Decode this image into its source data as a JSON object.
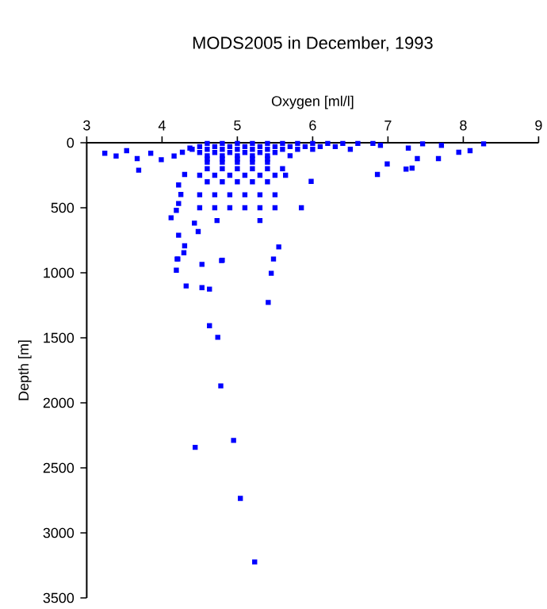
{
  "chart_data": {
    "type": "scatter",
    "title": "MODS2005 in December, 1993",
    "xlabel": "Oxygen [ml/l]",
    "ylabel": "Depth [m]",
    "xlim": [
      3,
      9
    ],
    "ylim": [
      3500,
      0
    ],
    "xticks": [
      3,
      4,
      5,
      6,
      7,
      8,
      9
    ],
    "yticks": [
      0,
      500,
      1000,
      1500,
      2000,
      2500,
      3000,
      3500
    ],
    "marker": "square",
    "series": [
      {
        "color": "#0000ff",
        "x": [
          3.24,
          3.39,
          3.53,
          3.67,
          3.69,
          3.85,
          3.99,
          4.16,
          4.27,
          4.37,
          4.3,
          4.22,
          4.25,
          4.22,
          4.19,
          4.12,
          4.43,
          4.73,
          4.22,
          4.48,
          4.3,
          4.29,
          4.2,
          4.53,
          4.8,
          5.3,
          5.55,
          5.48,
          5.85,
          5.98,
          6.86,
          6.99,
          7.24,
          7.32,
          7.39,
          7.27,
          7.67,
          7.94,
          8.09,
          8.27,
          7.46,
          7.71,
          6.9,
          4.21,
          4.19,
          4.79,
          5.45,
          4.32,
          4.53,
          4.63,
          5.41,
          4.63,
          4.74,
          4.78,
          4.95,
          4.44,
          5.04,
          5.23,
          4.6,
          4.8,
          5.0,
          5.2,
          5.4,
          5.6,
          5.8,
          6.0,
          6.2,
          6.4,
          6.6,
          6.8,
          4.5,
          4.7,
          4.9,
          5.1,
          5.3,
          5.5,
          5.7,
          5.9,
          6.1,
          6.3,
          4.4,
          4.6,
          4.8,
          5.0,
          5.2,
          5.4,
          5.6,
          5.8,
          6.0,
          6.5,
          4.5,
          4.7,
          4.9,
          5.1,
          5.3,
          5.5,
          4.6,
          4.8,
          5.0,
          5.2,
          5.4,
          5.7,
          4.6,
          4.8,
          5.0,
          5.2,
          5.4,
          4.6,
          4.8,
          5.0,
          5.2,
          5.4,
          4.6,
          4.8,
          5.0,
          5.2,
          5.4,
          5.6,
          4.5,
          4.7,
          4.9,
          5.1,
          5.3,
          5.5,
          5.64,
          4.6,
          4.8,
          5.0,
          5.2,
          5.4,
          4.5,
          4.7,
          4.9,
          5.1,
          5.3,
          5.5,
          4.5,
          4.7,
          4.9,
          5.1,
          5.3,
          5.5
        ],
        "values": [
          81,
          102,
          61,
          122,
          211,
          81,
          130,
          102,
          73,
          41,
          244,
          325,
          398,
          467,
          520,
          577,
          618,
          598,
          711,
          683,
          793,
          846,
          894,
          935,
          903,
          598,
          801,
          894,
          500,
          297,
          244,
          163,
          203,
          195,
          122,
          41,
          122,
          73,
          61,
          8,
          8,
          20,
          20,
          894,
          980,
          906,
          1004,
          1101,
          1114,
          1126,
          1228,
          1407,
          1496,
          1870,
          2289,
          2342,
          2735,
          3223,
          5,
          5,
          5,
          5,
          5,
          5,
          5,
          5,
          5,
          5,
          5,
          5,
          30,
          30,
          30,
          30,
          30,
          30,
          30,
          30,
          30,
          30,
          50,
          50,
          50,
          50,
          50,
          50,
          50,
          50,
          50,
          50,
          75,
          75,
          75,
          75,
          75,
          75,
          100,
          100,
          100,
          100,
          100,
          100,
          125,
          125,
          125,
          125,
          125,
          150,
          150,
          150,
          150,
          150,
          200,
          200,
          200,
          200,
          200,
          200,
          250,
          250,
          250,
          250,
          250,
          250,
          250,
          300,
          300,
          300,
          300,
          300,
          400,
          400,
          400,
          400,
          400,
          400,
          500,
          500,
          500,
          500,
          500,
          500
        ]
      }
    ]
  }
}
